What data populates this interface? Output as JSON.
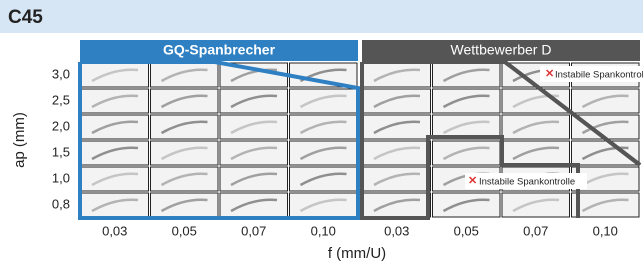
{
  "title": "C45",
  "panels": [
    {
      "title": "GQ-Spanbrecher",
      "x_ticks": [
        "0,03",
        "0,05",
        "0,07",
        "0,10"
      ]
    },
    {
      "title": "Wettbewerber D",
      "x_ticks": [
        "0,03",
        "0,05",
        "0,07",
        "0,10"
      ]
    }
  ],
  "y_axis": {
    "label": "ap (mm)",
    "ticks": [
      "3,0",
      "2,5",
      "2,0",
      "1,5",
      "1,0",
      "0,8"
    ]
  },
  "x_axis": {
    "label": "f (mm/U)"
  },
  "annotations": [
    "Instabile Spankontrolle",
    "Instabile Spankontrolle"
  ]
}
